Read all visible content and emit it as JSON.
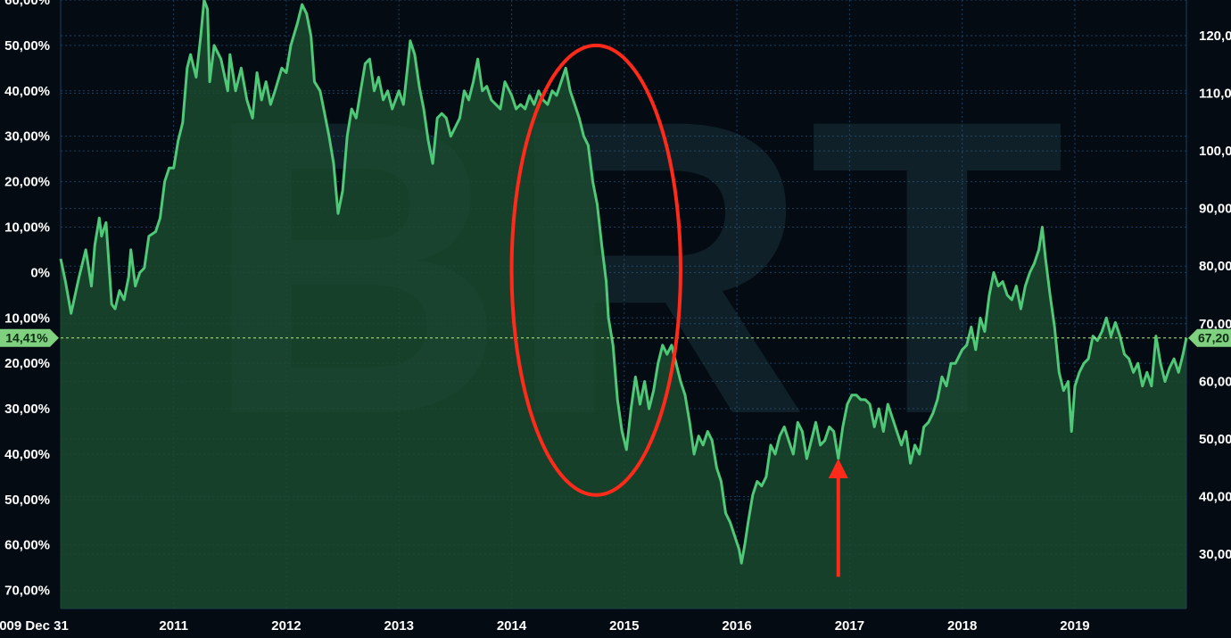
{
  "colors": {
    "background": "#040b12",
    "line": "#4fc978",
    "area": "#1b4a2f",
    "grid": "#1b3f63",
    "reference_line": "#b8e986",
    "annotation": "#ff2a1a",
    "watermark": "#3a6e78",
    "axis_text": "#ffffff"
  },
  "watermark": {
    "text": "BRT"
  },
  "chart_data": {
    "type": "area",
    "x_unit": "year (decimal)",
    "xlim": [
      2009.997,
      2019.99
    ],
    "x_ticks": [
      {
        "label": "009 Dec 31",
        "value": 2009.997
      },
      {
        "label": "2011",
        "value": 2011.0
      },
      {
        "label": "2012",
        "value": 2012.0
      },
      {
        "label": "2013",
        "value": 2013.0
      },
      {
        "label": "2014",
        "value": 2014.0
      },
      {
        "label": "2015",
        "value": 2015.0
      },
      {
        "label": "2016",
        "value": 2016.0
      },
      {
        "label": "2017",
        "value": 2017.0
      },
      {
        "label": "2018",
        "value": 2018.0
      },
      {
        "label": "2019",
        "value": 2019.0
      }
    ],
    "y_left": {
      "unit": "percent change",
      "ylim": [
        -74,
        60
      ],
      "ticks": [
        {
          "label": "60,00%",
          "value": 60
        },
        {
          "label": "50,00%",
          "value": 50
        },
        {
          "label": "40,00%",
          "value": 40
        },
        {
          "label": "30,00%",
          "value": 30
        },
        {
          "label": "20,00%",
          "value": 20
        },
        {
          "label": "10,00%",
          "value": 10
        },
        {
          "label": "0%",
          "value": 0
        },
        {
          "label": "10,00%",
          "value": -10
        },
        {
          "label": "20,00%",
          "value": -20
        },
        {
          "label": "30,00%",
          "value": -30
        },
        {
          "label": "40,00%",
          "value": -40
        },
        {
          "label": "50,00%",
          "value": -50
        },
        {
          "label": "60,00%",
          "value": -60
        },
        {
          "label": "70,00%",
          "value": -70
        }
      ]
    },
    "y_right": {
      "unit": "price",
      "ticks": [
        {
          "label": "120,0",
          "value": 120
        },
        {
          "label": "110,0",
          "value": 110
        },
        {
          "label": "100,0",
          "value": 100
        },
        {
          "label": "90,00",
          "value": 90
        },
        {
          "label": "80,00",
          "value": 80
        },
        {
          "label": "70,00",
          "value": 70
        },
        {
          "label": "60,00",
          "value": 60
        },
        {
          "label": "50,00",
          "value": 50
        },
        {
          "label": "40,00",
          "value": 40
        },
        {
          "label": "30,00",
          "value": 30
        }
      ]
    },
    "current": {
      "left_label": "14,41%",
      "left_value": -14.41,
      "right_label": "67,20",
      "right_value": 67.2
    },
    "series": [
      {
        "values": [
          [
            2009.997,
            3
          ],
          [
            2010.04,
            -2
          ],
          [
            2010.09,
            -9
          ],
          [
            2010.16,
            -1
          ],
          [
            2010.22,
            5
          ],
          [
            2010.27,
            -3
          ],
          [
            2010.3,
            6
          ],
          [
            2010.34,
            12
          ],
          [
            2010.36,
            8
          ],
          [
            2010.4,
            11
          ],
          [
            2010.45,
            -7
          ],
          [
            2010.48,
            -8
          ],
          [
            2010.52,
            -4
          ],
          [
            2010.56,
            -6
          ],
          [
            2010.6,
            -1
          ],
          [
            2010.62,
            5
          ],
          [
            2010.66,
            -3
          ],
          [
            2010.7,
            0
          ],
          [
            2010.74,
            1
          ],
          [
            2010.78,
            8
          ],
          [
            2010.84,
            9
          ],
          [
            2010.88,
            12
          ],
          [
            2010.92,
            20
          ],
          [
            2010.96,
            23
          ],
          [
            2011.0,
            23
          ],
          [
            2011.04,
            29
          ],
          [
            2011.08,
            33
          ],
          [
            2011.12,
            45
          ],
          [
            2011.15,
            48
          ],
          [
            2011.2,
            43
          ],
          [
            2011.24,
            52
          ],
          [
            2011.27,
            60
          ],
          [
            2011.3,
            58
          ],
          [
            2011.32,
            42
          ],
          [
            2011.36,
            50
          ],
          [
            2011.42,
            47
          ],
          [
            2011.48,
            40
          ],
          [
            2011.5,
            48
          ],
          [
            2011.55,
            40
          ],
          [
            2011.6,
            45
          ],
          [
            2011.65,
            38
          ],
          [
            2011.7,
            34
          ],
          [
            2011.74,
            44
          ],
          [
            2011.78,
            38
          ],
          [
            2011.82,
            42
          ],
          [
            2011.86,
            37
          ],
          [
            2011.9,
            40
          ],
          [
            2011.96,
            45
          ],
          [
            2012.0,
            44
          ],
          [
            2012.04,
            50
          ],
          [
            2012.1,
            55
          ],
          [
            2012.14,
            59
          ],
          [
            2012.18,
            57
          ],
          [
            2012.22,
            52
          ],
          [
            2012.25,
            42
          ],
          [
            2012.3,
            40
          ],
          [
            2012.34,
            35
          ],
          [
            2012.38,
            30
          ],
          [
            2012.42,
            24
          ],
          [
            2012.46,
            13
          ],
          [
            2012.5,
            18
          ],
          [
            2012.54,
            30
          ],
          [
            2012.58,
            36
          ],
          [
            2012.62,
            34
          ],
          [
            2012.66,
            40
          ],
          [
            2012.7,
            46
          ],
          [
            2012.74,
            47
          ],
          [
            2012.78,
            40
          ],
          [
            2012.82,
            43
          ],
          [
            2012.86,
            38
          ],
          [
            2012.9,
            40
          ],
          [
            2012.94,
            36
          ],
          [
            2013.0,
            40
          ],
          [
            2013.04,
            37
          ],
          [
            2013.08,
            46
          ],
          [
            2013.1,
            51
          ],
          [
            2013.14,
            48
          ],
          [
            2013.18,
            41
          ],
          [
            2013.22,
            36
          ],
          [
            2013.26,
            29
          ],
          [
            2013.3,
            24
          ],
          [
            2013.34,
            34
          ],
          [
            2013.38,
            35
          ],
          [
            2013.42,
            34
          ],
          [
            2013.46,
            30
          ],
          [
            2013.5,
            32
          ],
          [
            2013.54,
            34
          ],
          [
            2013.58,
            40
          ],
          [
            2013.62,
            38
          ],
          [
            2013.66,
            42
          ],
          [
            2013.7,
            47
          ],
          [
            2013.74,
            40
          ],
          [
            2013.78,
            41
          ],
          [
            2013.82,
            38
          ],
          [
            2013.86,
            37
          ],
          [
            2013.9,
            36
          ],
          [
            2013.94,
            42
          ],
          [
            2014.0,
            39
          ],
          [
            2014.04,
            36
          ],
          [
            2014.08,
            37
          ],
          [
            2014.12,
            36
          ],
          [
            2014.16,
            39
          ],
          [
            2014.2,
            37
          ],
          [
            2014.24,
            40
          ],
          [
            2014.28,
            38
          ],
          [
            2014.32,
            37
          ],
          [
            2014.36,
            40
          ],
          [
            2014.4,
            39
          ],
          [
            2014.44,
            42
          ],
          [
            2014.48,
            45
          ],
          [
            2014.52,
            40
          ],
          [
            2014.56,
            37
          ],
          [
            2014.6,
            34
          ],
          [
            2014.64,
            30
          ],
          [
            2014.68,
            28
          ],
          [
            2014.72,
            20
          ],
          [
            2014.76,
            15
          ],
          [
            2014.8,
            6
          ],
          [
            2014.84,
            -2
          ],
          [
            2014.86,
            -10
          ],
          [
            2014.9,
            -16
          ],
          [
            2014.94,
            -28
          ],
          [
            2014.98,
            -35
          ],
          [
            2015.02,
            -39
          ],
          [
            2015.06,
            -30
          ],
          [
            2015.1,
            -23
          ],
          [
            2015.14,
            -29
          ],
          [
            2015.18,
            -24
          ],
          [
            2015.22,
            -30
          ],
          [
            2015.26,
            -26
          ],
          [
            2015.3,
            -20
          ],
          [
            2015.34,
            -16
          ],
          [
            2015.38,
            -18
          ],
          [
            2015.42,
            -16
          ],
          [
            2015.46,
            -20
          ],
          [
            2015.5,
            -24
          ],
          [
            2015.54,
            -27
          ],
          [
            2015.58,
            -33
          ],
          [
            2015.62,
            -40
          ],
          [
            2015.66,
            -36
          ],
          [
            2015.7,
            -38
          ],
          [
            2015.74,
            -35
          ],
          [
            2015.78,
            -37
          ],
          [
            2015.82,
            -43
          ],
          [
            2015.86,
            -46
          ],
          [
            2015.9,
            -53
          ],
          [
            2015.94,
            -55
          ],
          [
            2015.98,
            -58
          ],
          [
            2016.02,
            -61
          ],
          [
            2016.04,
            -64
          ],
          [
            2016.07,
            -60
          ],
          [
            2016.1,
            -55
          ],
          [
            2016.14,
            -49
          ],
          [
            2016.18,
            -46
          ],
          [
            2016.22,
            -47
          ],
          [
            2016.26,
            -45
          ],
          [
            2016.3,
            -38
          ],
          [
            2016.34,
            -40
          ],
          [
            2016.38,
            -36
          ],
          [
            2016.42,
            -34
          ],
          [
            2016.46,
            -37
          ],
          [
            2016.5,
            -40
          ],
          [
            2016.54,
            -33
          ],
          [
            2016.58,
            -35
          ],
          [
            2016.62,
            -41
          ],
          [
            2016.66,
            -37
          ],
          [
            2016.7,
            -33
          ],
          [
            2016.74,
            -38
          ],
          [
            2016.78,
            -37
          ],
          [
            2016.82,
            -34
          ],
          [
            2016.86,
            -35
          ],
          [
            2016.9,
            -41
          ],
          [
            2016.94,
            -34
          ],
          [
            2016.98,
            -29
          ],
          [
            2017.02,
            -27
          ],
          [
            2017.06,
            -27
          ],
          [
            2017.1,
            -28
          ],
          [
            2017.14,
            -28
          ],
          [
            2017.18,
            -29
          ],
          [
            2017.22,
            -34
          ],
          [
            2017.26,
            -30
          ],
          [
            2017.3,
            -35
          ],
          [
            2017.34,
            -29
          ],
          [
            2017.38,
            -32
          ],
          [
            2017.42,
            -35
          ],
          [
            2017.46,
            -38
          ],
          [
            2017.5,
            -35
          ],
          [
            2017.54,
            -42
          ],
          [
            2017.58,
            -38
          ],
          [
            2017.62,
            -40
          ],
          [
            2017.66,
            -34
          ],
          [
            2017.7,
            -33
          ],
          [
            2017.74,
            -31
          ],
          [
            2017.78,
            -28
          ],
          [
            2017.82,
            -23
          ],
          [
            2017.86,
            -25
          ],
          [
            2017.9,
            -20
          ],
          [
            2017.94,
            -20
          ],
          [
            2018.0,
            -17
          ],
          [
            2018.04,
            -16
          ],
          [
            2018.08,
            -12
          ],
          [
            2018.12,
            -17
          ],
          [
            2018.16,
            -10
          ],
          [
            2018.2,
            -13
          ],
          [
            2018.24,
            -5
          ],
          [
            2018.28,
            0
          ],
          [
            2018.32,
            -3
          ],
          [
            2018.36,
            -2
          ],
          [
            2018.4,
            -5
          ],
          [
            2018.44,
            -6
          ],
          [
            2018.48,
            -3
          ],
          [
            2018.52,
            -8
          ],
          [
            2018.56,
            -3
          ],
          [
            2018.6,
            0
          ],
          [
            2018.64,
            2
          ],
          [
            2018.68,
            5
          ],
          [
            2018.71,
            10
          ],
          [
            2018.74,
            3
          ],
          [
            2018.78,
            -5
          ],
          [
            2018.82,
            -12
          ],
          [
            2018.86,
            -22
          ],
          [
            2018.9,
            -26
          ],
          [
            2018.94,
            -24
          ],
          [
            2018.97,
            -35
          ],
          [
            2019.0,
            -25
          ],
          [
            2019.04,
            -22
          ],
          [
            2019.08,
            -20
          ],
          [
            2019.12,
            -19
          ],
          [
            2019.16,
            -14
          ],
          [
            2019.2,
            -15
          ],
          [
            2019.24,
            -13
          ],
          [
            2019.28,
            -10
          ],
          [
            2019.32,
            -14
          ],
          [
            2019.36,
            -11
          ],
          [
            2019.4,
            -14
          ],
          [
            2019.44,
            -18
          ],
          [
            2019.48,
            -19
          ],
          [
            2019.52,
            -22
          ],
          [
            2019.56,
            -20
          ],
          [
            2019.6,
            -25
          ],
          [
            2019.64,
            -22
          ],
          [
            2019.68,
            -25
          ],
          [
            2019.72,
            -14
          ],
          [
            2019.76,
            -20
          ],
          [
            2019.8,
            -24
          ],
          [
            2019.84,
            -21
          ],
          [
            2019.88,
            -19
          ],
          [
            2019.92,
            -22
          ],
          [
            2019.96,
            -18
          ],
          [
            2019.99,
            -14.41
          ]
        ]
      }
    ],
    "annotations": [
      {
        "shape": "ellipse",
        "x_range": [
          2014.0,
          2015.5
        ],
        "y_range": [
          -49,
          50
        ]
      },
      {
        "shape": "arrow",
        "x": 2016.9,
        "y_from": -67,
        "y_to": -41
      }
    ]
  }
}
